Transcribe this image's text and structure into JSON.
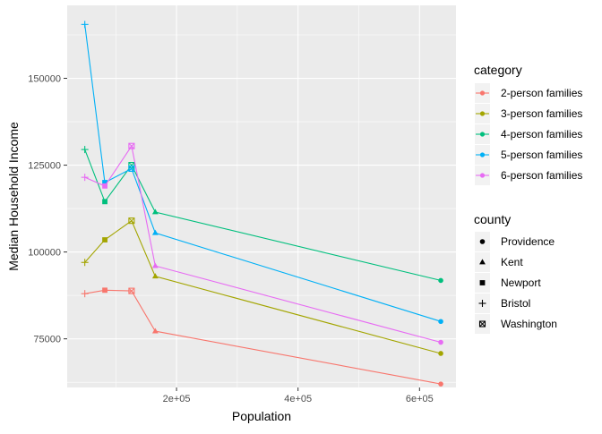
{
  "chart_data": {
    "type": "line",
    "xlabel": "Population",
    "ylabel": "Median Household Income",
    "xlim": [
      20000,
      660000
    ],
    "ylim": [
      61000,
      171000
    ],
    "x_ticks": [
      {
        "value": 200000,
        "label": "2e+05"
      },
      {
        "value": 400000,
        "label": "4e+05"
      },
      {
        "value": 600000,
        "label": "6e+05"
      }
    ],
    "y_ticks": [
      {
        "value": 75000,
        "label": "75000"
      },
      {
        "value": 100000,
        "label": "100000"
      },
      {
        "value": 125000,
        "label": "125000"
      },
      {
        "value": 150000,
        "label": "150000"
      }
    ],
    "grid": true,
    "background": "#ebebeb",
    "legend_placement": "right",
    "color_legend": {
      "title": "category",
      "entries": [
        {
          "label": "2-person families",
          "color": "#f8766d"
        },
        {
          "label": "3-person families",
          "color": "#a3a500"
        },
        {
          "label": "4-person families",
          "color": "#00bf7d"
        },
        {
          "label": "5-person families",
          "color": "#00b0f6"
        },
        {
          "label": "6-person families",
          "color": "#e76bf3"
        }
      ]
    },
    "shape_legend": {
      "title": "county",
      "entries": [
        {
          "label": "Providence",
          "shape": "circle"
        },
        {
          "label": "Kent",
          "shape": "triangle"
        },
        {
          "label": "Newport",
          "shape": "square"
        },
        {
          "label": "Bristol",
          "shape": "plus"
        },
        {
          "label": "Washington",
          "shape": "square-x"
        }
      ]
    },
    "points_order": [
      "Bristol",
      "Newport",
      "Washington",
      "Kent",
      "Providence"
    ],
    "x": [
      49000,
      82000,
      126000,
      165000,
      635000
    ],
    "series": [
      {
        "name": "2-person families",
        "color": "#f8766d",
        "values": [
          88000,
          89000,
          88800,
          77200,
          62000
        ]
      },
      {
        "name": "3-person families",
        "color": "#a3a500",
        "values": [
          97000,
          103500,
          109000,
          93000,
          70800
        ]
      },
      {
        "name": "4-person families",
        "color": "#00bf7d",
        "values": [
          129500,
          114500,
          125000,
          111500,
          91800
        ]
      },
      {
        "name": "5-person families",
        "color": "#00b0f6",
        "values": [
          165500,
          120000,
          124000,
          105500,
          80000
        ]
      },
      {
        "name": "6-person families",
        "color": "#e76bf3",
        "values": [
          121500,
          119000,
          130500,
          96000,
          74000
        ]
      }
    ]
  }
}
